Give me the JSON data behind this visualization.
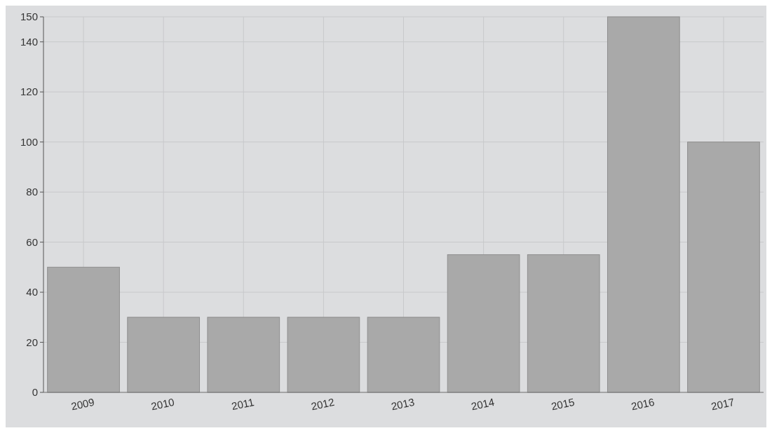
{
  "chart_data": {
    "type": "bar",
    "categories": [
      "2009",
      "2010",
      "2011",
      "2012",
      "2013",
      "2014",
      "2015",
      "2016",
      "2017"
    ],
    "values": [
      50,
      30,
      30,
      30,
      30,
      55,
      55,
      150,
      100
    ],
    "color": "#a9a9a9",
    "ylim": [
      0,
      150
    ],
    "yticks": [
      0,
      20,
      40,
      60,
      80,
      100,
      120,
      140,
      150
    ],
    "grid": true
  }
}
